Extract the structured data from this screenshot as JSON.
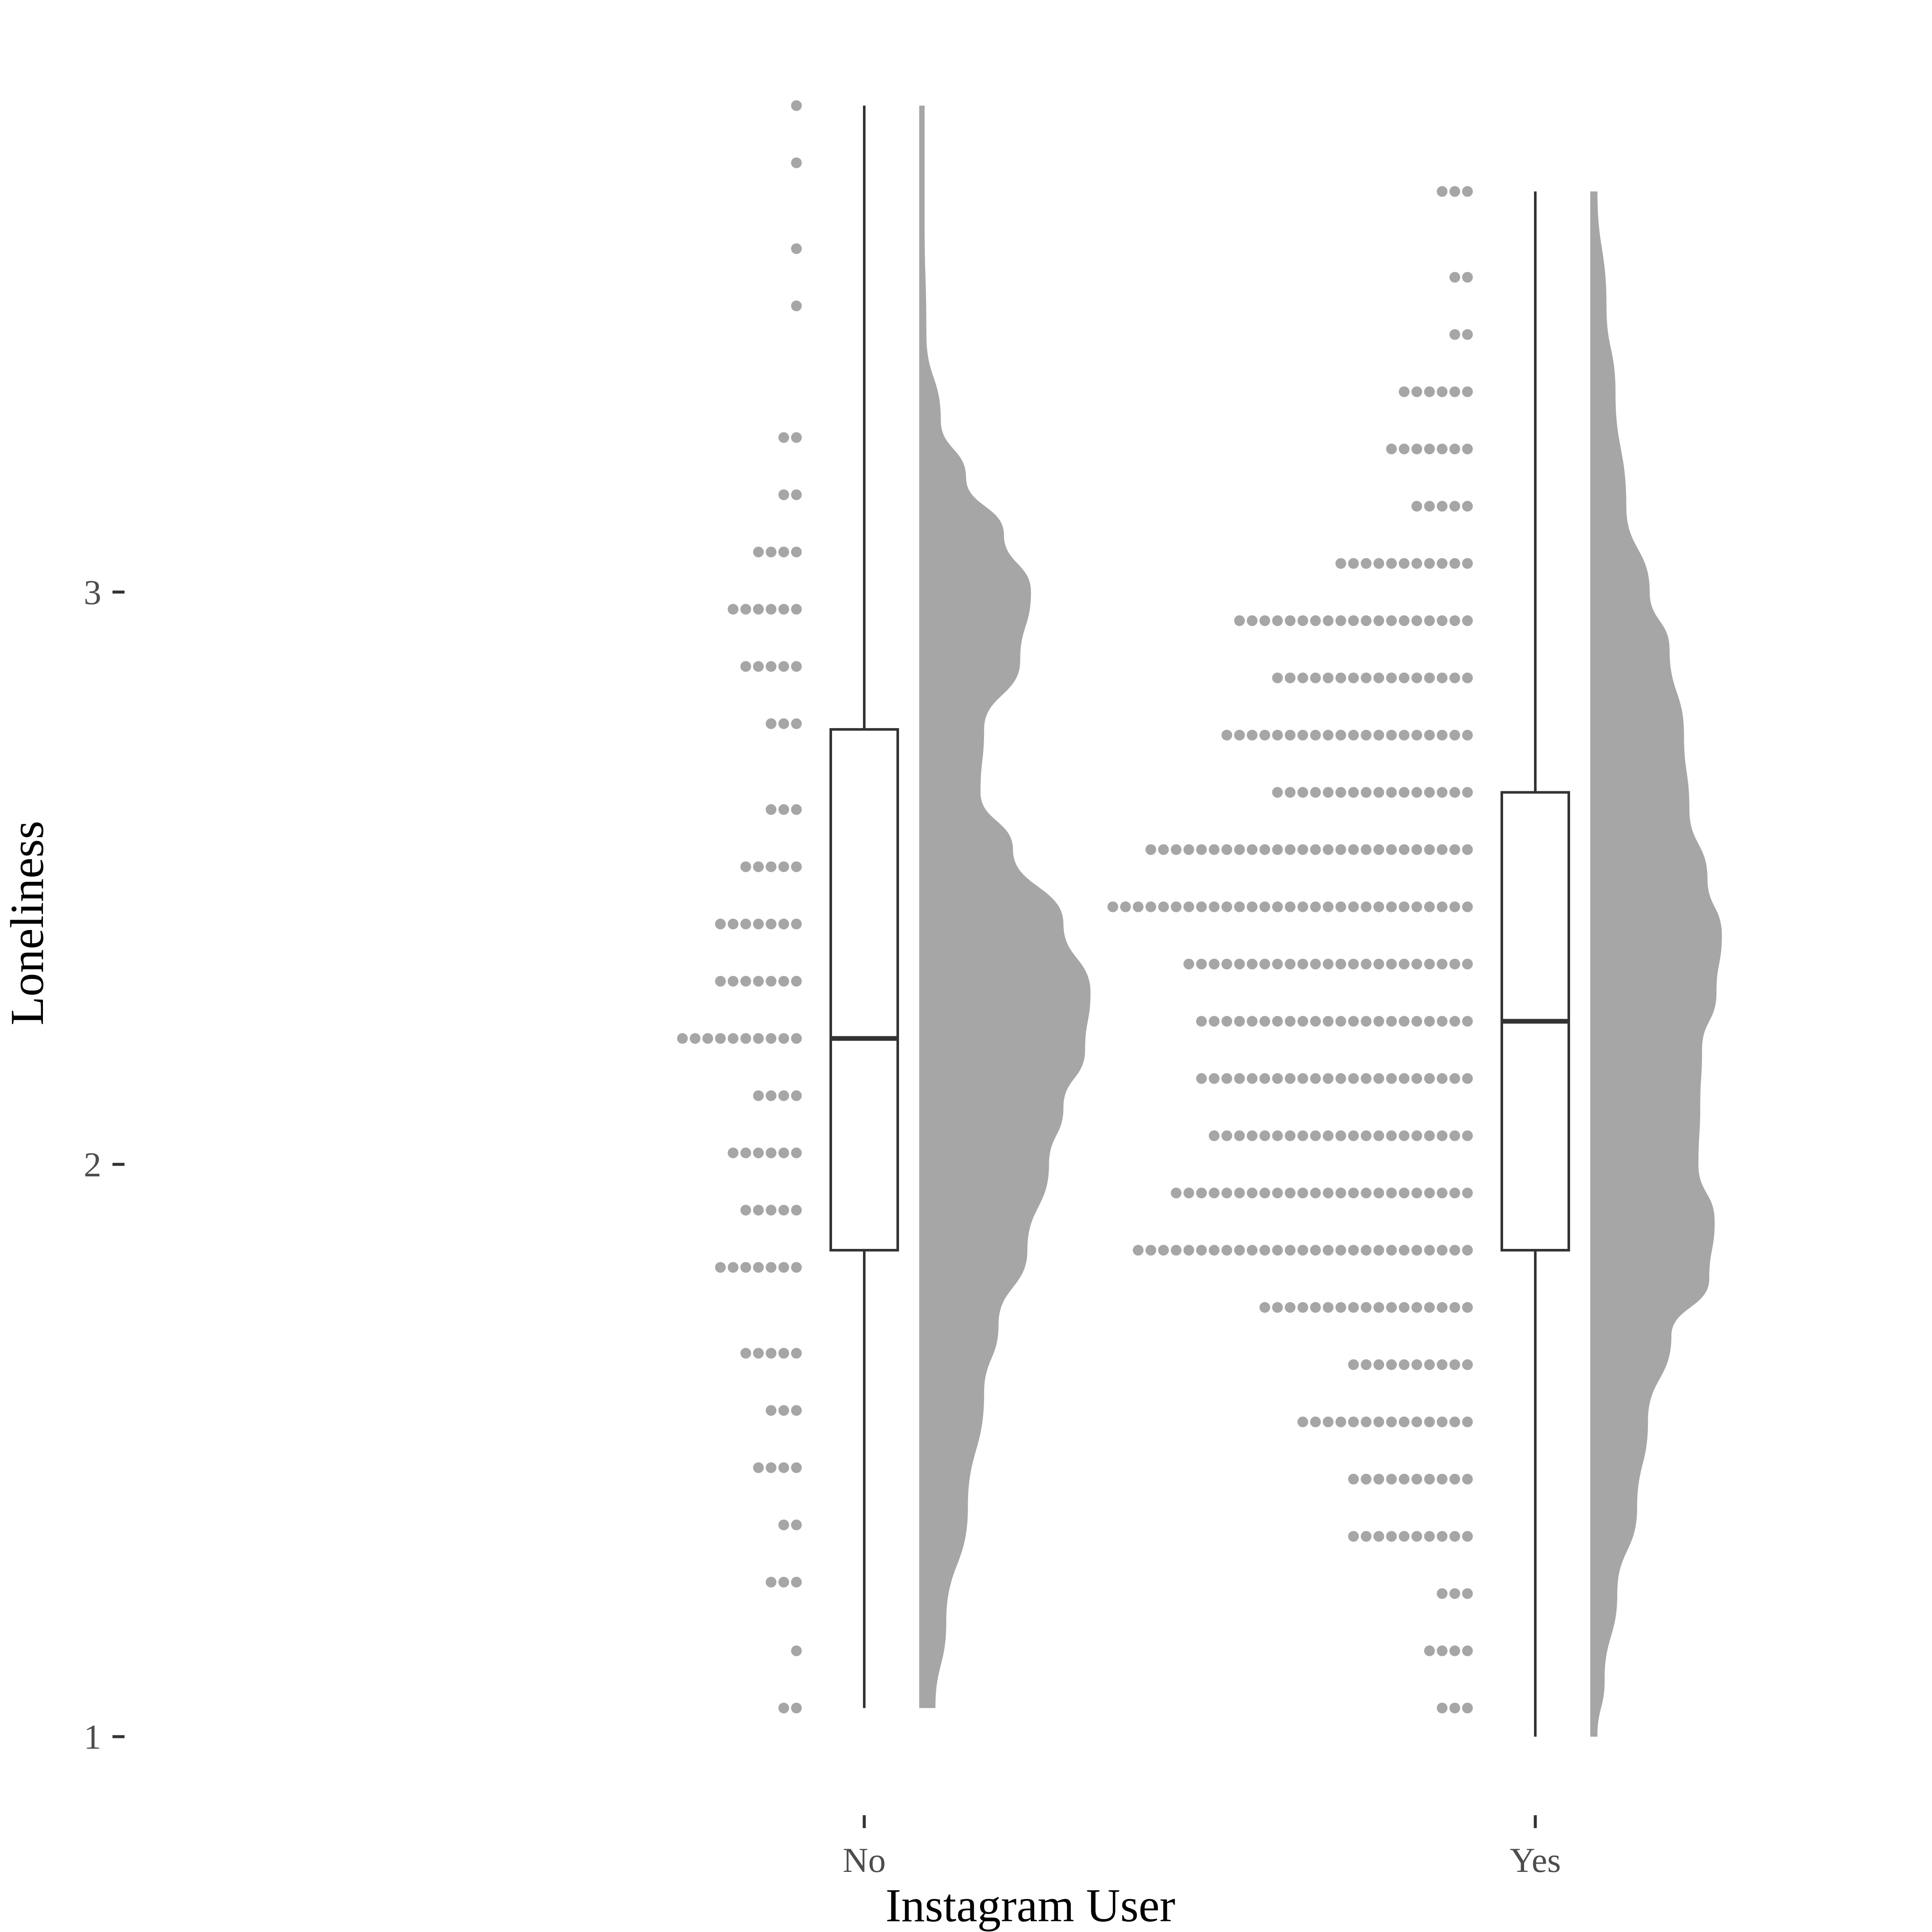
{
  "chart_data": {
    "type": "raincloud",
    "xlabel": "Instagram User",
    "ylabel": "Loneliness",
    "categories": [
      "No",
      "Yes"
    ],
    "yticks": [
      "1",
      "2",
      "3"
    ],
    "ylim": [
      1,
      3.85
    ],
    "grid": false,
    "legend": "none",
    "colors": {
      "dots": "#a6a6a6",
      "density": "#a6a6a6",
      "box": "#333333",
      "background": "#ffffff"
    },
    "series": [
      {
        "category": "No",
        "dots": [
          {
            "y": 3.85,
            "n": 1
          },
          {
            "y": 3.75,
            "n": 1
          },
          {
            "y": 3.6,
            "n": 1
          },
          {
            "y": 3.5,
            "n": 1
          },
          {
            "y": 3.27,
            "n": 2
          },
          {
            "y": 3.17,
            "n": 2
          },
          {
            "y": 3.07,
            "n": 4
          },
          {
            "y": 2.97,
            "n": 6
          },
          {
            "y": 2.87,
            "n": 5
          },
          {
            "y": 2.77,
            "n": 3
          },
          {
            "y": 2.62,
            "n": 3
          },
          {
            "y": 2.52,
            "n": 5
          },
          {
            "y": 2.42,
            "n": 7
          },
          {
            "y": 2.32,
            "n": 7
          },
          {
            "y": 2.22,
            "n": 10
          },
          {
            "y": 2.12,
            "n": 4
          },
          {
            "y": 2.02,
            "n": 6
          },
          {
            "y": 1.92,
            "n": 5
          },
          {
            "y": 1.82,
            "n": 7
          },
          {
            "y": 1.67,
            "n": 5
          },
          {
            "y": 1.57,
            "n": 3
          },
          {
            "y": 1.47,
            "n": 4
          },
          {
            "y": 1.37,
            "n": 2
          },
          {
            "y": 1.27,
            "n": 3
          },
          {
            "y": 1.15,
            "n": 1
          },
          {
            "y": 1.05,
            "n": 2
          }
        ],
        "box": {
          "min": 1.05,
          "q1": 1.85,
          "median": 2.22,
          "q3": 2.76,
          "max": 3.85
        },
        "density": [
          {
            "y": 1.05,
            "d": 0.09
          },
          {
            "y": 1.2,
            "d": 0.15
          },
          {
            "y": 1.4,
            "d": 0.27
          },
          {
            "y": 1.6,
            "d": 0.36
          },
          {
            "y": 1.72,
            "d": 0.44
          },
          {
            "y": 1.85,
            "d": 0.6
          },
          {
            "y": 2.0,
            "d": 0.72
          },
          {
            "y": 2.1,
            "d": 0.8
          },
          {
            "y": 2.2,
            "d": 0.92
          },
          {
            "y": 2.3,
            "d": 0.95
          },
          {
            "y": 2.42,
            "d": 0.8
          },
          {
            "y": 2.55,
            "d": 0.52
          },
          {
            "y": 2.65,
            "d": 0.34
          },
          {
            "y": 2.76,
            "d": 0.36
          },
          {
            "y": 2.88,
            "d": 0.56
          },
          {
            "y": 3.0,
            "d": 0.62
          },
          {
            "y": 3.1,
            "d": 0.47
          },
          {
            "y": 3.2,
            "d": 0.26
          },
          {
            "y": 3.3,
            "d": 0.12
          },
          {
            "y": 3.45,
            "d": 0.04
          },
          {
            "y": 3.65,
            "d": 0.03
          },
          {
            "y": 3.85,
            "d": 0.03
          }
        ]
      },
      {
        "category": "Yes",
        "dots": [
          {
            "y": 3.7,
            "n": 3
          },
          {
            "y": 3.55,
            "n": 2
          },
          {
            "y": 3.45,
            "n": 2
          },
          {
            "y": 3.35,
            "n": 6
          },
          {
            "y": 3.25,
            "n": 7
          },
          {
            "y": 3.15,
            "n": 5
          },
          {
            "y": 3.05,
            "n": 11
          },
          {
            "y": 2.95,
            "n": 19
          },
          {
            "y": 2.85,
            "n": 16
          },
          {
            "y": 2.75,
            "n": 20
          },
          {
            "y": 2.65,
            "n": 16
          },
          {
            "y": 2.55,
            "n": 26
          },
          {
            "y": 2.45,
            "n": 29
          },
          {
            "y": 2.35,
            "n": 23
          },
          {
            "y": 2.25,
            "n": 22
          },
          {
            "y": 2.15,
            "n": 22
          },
          {
            "y": 2.05,
            "n": 21
          },
          {
            "y": 1.95,
            "n": 24
          },
          {
            "y": 1.85,
            "n": 27
          },
          {
            "y": 1.75,
            "n": 17
          },
          {
            "y": 1.65,
            "n": 10
          },
          {
            "y": 1.55,
            "n": 14
          },
          {
            "y": 1.45,
            "n": 10
          },
          {
            "y": 1.35,
            "n": 10
          },
          {
            "y": 1.25,
            "n": 3
          },
          {
            "y": 1.15,
            "n": 4
          },
          {
            "y": 1.05,
            "n": 3
          }
        ],
        "box": {
          "min": 1.0,
          "q1": 1.85,
          "median": 2.25,
          "q3": 2.65,
          "max": 3.7
        },
        "density": [
          {
            "y": 1.0,
            "d": 0.04
          },
          {
            "y": 1.1,
            "d": 0.08
          },
          {
            "y": 1.25,
            "d": 0.15
          },
          {
            "y": 1.4,
            "d": 0.26
          },
          {
            "y": 1.55,
            "d": 0.32
          },
          {
            "y": 1.7,
            "d": 0.45
          },
          {
            "y": 1.8,
            "d": 0.66
          },
          {
            "y": 1.9,
            "d": 0.69
          },
          {
            "y": 2.0,
            "d": 0.6
          },
          {
            "y": 2.1,
            "d": 0.61
          },
          {
            "y": 2.2,
            "d": 0.62
          },
          {
            "y": 2.3,
            "d": 0.7
          },
          {
            "y": 2.4,
            "d": 0.73
          },
          {
            "y": 2.5,
            "d": 0.65
          },
          {
            "y": 2.62,
            "d": 0.55
          },
          {
            "y": 2.75,
            "d": 0.52
          },
          {
            "y": 2.9,
            "d": 0.44
          },
          {
            "y": 3.0,
            "d": 0.33
          },
          {
            "y": 3.15,
            "d": 0.2
          },
          {
            "y": 3.35,
            "d": 0.14
          },
          {
            "y": 3.5,
            "d": 0.09
          },
          {
            "y": 3.7,
            "d": 0.04
          }
        ]
      }
    ]
  }
}
